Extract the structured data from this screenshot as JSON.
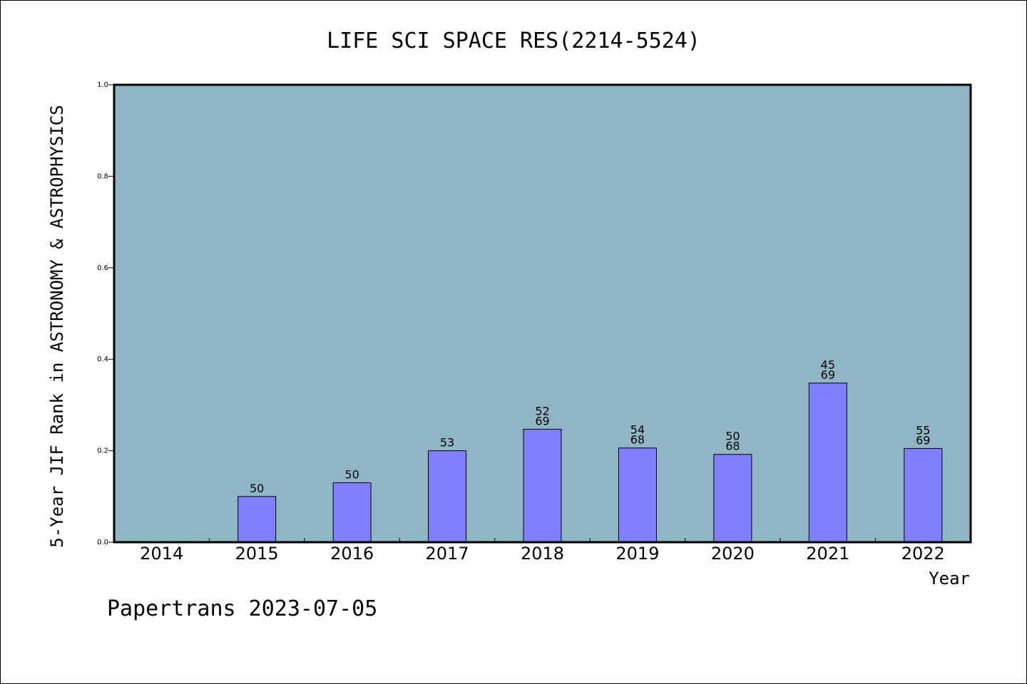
{
  "chart_data": {
    "type": "bar",
    "title": "LIFE SCI SPACE RES(2214-5524)",
    "xlabel": "Year",
    "ylabel": "5-Year JIF Rank in ASTRONOMY & ASTROPHYSICS",
    "ylim": [
      0,
      1.0
    ],
    "yticks": [
      "0.0",
      "0.2",
      "0.4",
      "0.6",
      "0.8",
      "1.0"
    ],
    "categories": [
      "2014",
      "2015",
      "2016",
      "2017",
      "2018",
      "2019",
      "2020",
      "2021",
      "2022"
    ],
    "values": [
      null,
      0.1,
      0.13,
      0.2,
      0.247,
      0.206,
      0.192,
      0.348,
      0.205
    ],
    "labels": [
      [],
      [
        "50"
      ],
      [
        "50"
      ],
      [
        "53"
      ],
      [
        "52",
        "69"
      ],
      [
        "54",
        "68"
      ],
      [
        "50",
        "68"
      ],
      [
        "45",
        "69"
      ],
      [
        "55",
        "69"
      ]
    ],
    "grid": false,
    "plot_background": "#8fb6c4",
    "bar_color": "#8080ff"
  },
  "footer": "Papertrans 2023-07-05"
}
